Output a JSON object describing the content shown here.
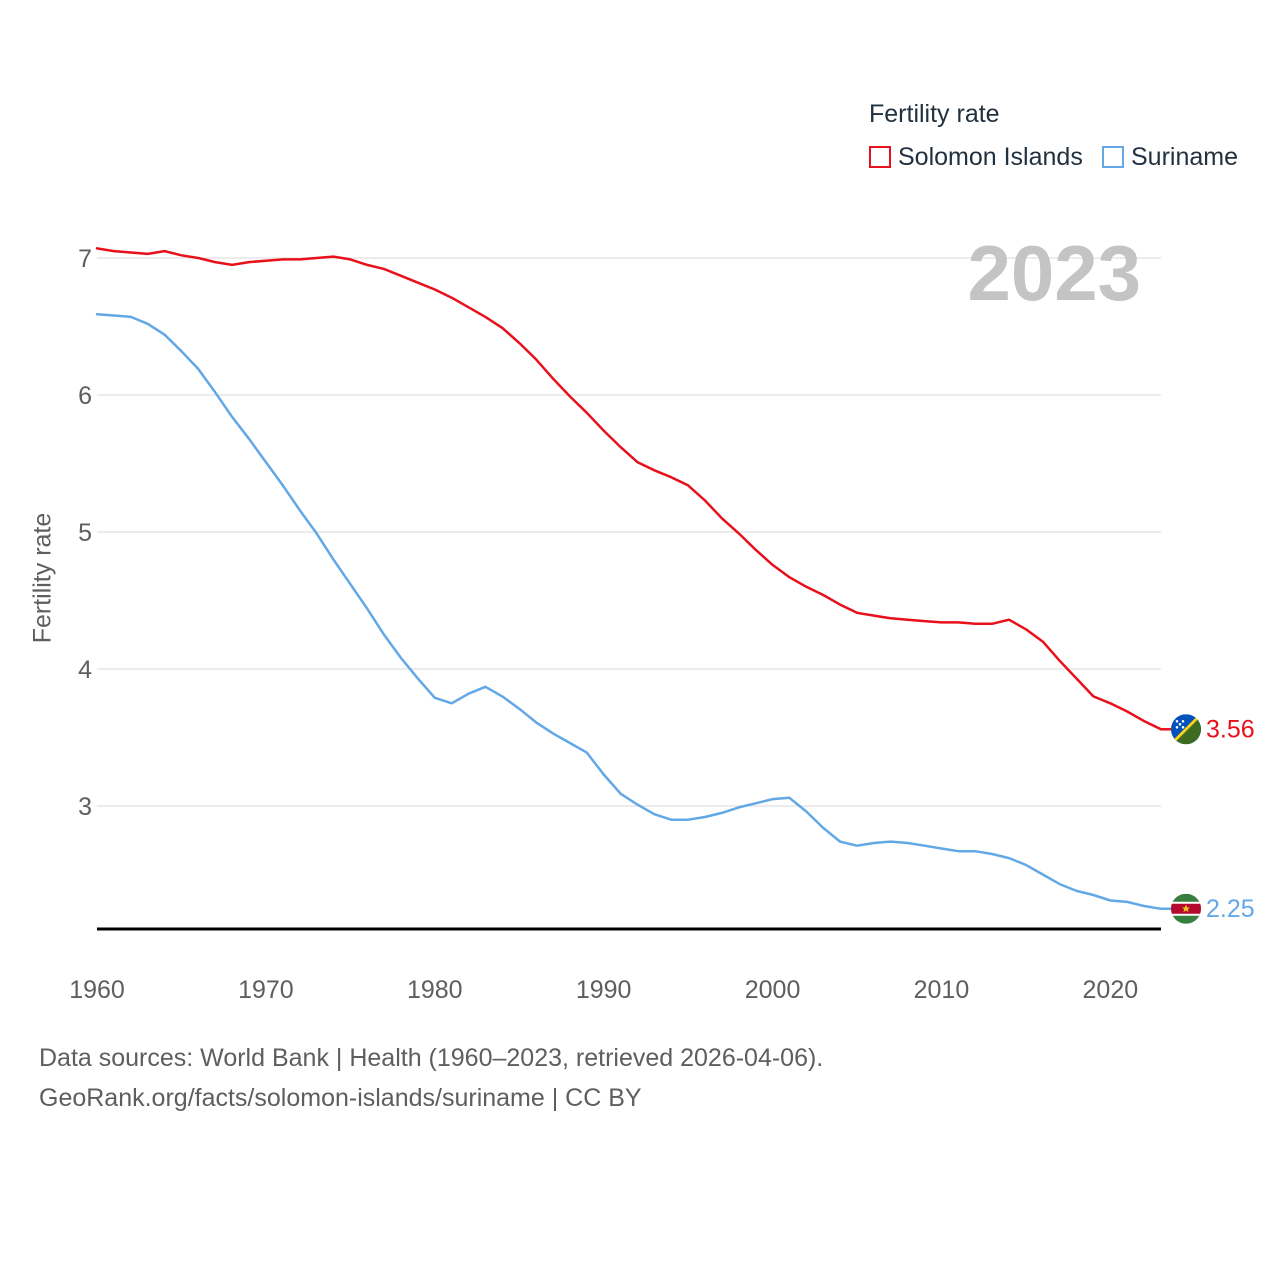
{
  "chart_data": {
    "type": "line",
    "title": "",
    "legend_title": "Fertility rate",
    "legend_position": "top-right",
    "big_year": "2023",
    "xlabel": "",
    "ylabel": "Fertility rate",
    "xlim": [
      1960,
      2023
    ],
    "ylim": [
      2.1,
      7.2
    ],
    "x_ticks": [
      "1960",
      "1970",
      "1980",
      "1990",
      "2000",
      "2010",
      "2020"
    ],
    "y_ticks": [
      "3",
      "4",
      "5",
      "6",
      "7"
    ],
    "grid": true,
    "x": [
      1960,
      1961,
      1962,
      1963,
      1964,
      1965,
      1966,
      1967,
      1968,
      1969,
      1970,
      1971,
      1972,
      1973,
      1974,
      1975,
      1976,
      1977,
      1978,
      1979,
      1980,
      1981,
      1982,
      1983,
      1984,
      1985,
      1986,
      1987,
      1988,
      1989,
      1990,
      1991,
      1992,
      1993,
      1994,
      1995,
      1996,
      1997,
      1998,
      1999,
      2000,
      2001,
      2002,
      2003,
      2004,
      2005,
      2006,
      2007,
      2008,
      2009,
      2010,
      2011,
      2012,
      2013,
      2014,
      2015,
      2016,
      2017,
      2018,
      2019,
      2020,
      2021,
      2022,
      2023
    ],
    "series": [
      {
        "name": "Solomon Islands",
        "color": "#e8101b",
        "end_label": "3.56",
        "flag": "solomon-islands-flag",
        "values": [
          7.07,
          7.05,
          7.04,
          7.03,
          7.05,
          7.02,
          7.0,
          6.97,
          6.95,
          6.97,
          6.98,
          6.99,
          6.99,
          7.0,
          7.01,
          6.99,
          6.95,
          6.92,
          6.87,
          6.82,
          6.77,
          6.71,
          6.64,
          6.57,
          6.49,
          6.38,
          6.26,
          6.12,
          5.99,
          5.87,
          5.74,
          5.62,
          5.51,
          5.45,
          5.4,
          5.34,
          5.23,
          5.1,
          4.99,
          4.87,
          4.76,
          4.67,
          4.6,
          4.54,
          4.47,
          4.41,
          4.39,
          4.37,
          4.36,
          4.35,
          4.34,
          4.34,
          4.33,
          4.33,
          4.36,
          4.29,
          4.2,
          4.06,
          3.93,
          3.8,
          3.75,
          3.69,
          3.62,
          3.56
        ]
      },
      {
        "name": "Suriname",
        "color": "#63a8e6",
        "end_label": "2.25",
        "flag": "suriname-flag",
        "values": [
          6.59,
          6.58,
          6.57,
          6.52,
          6.44,
          6.32,
          6.19,
          6.02,
          5.84,
          5.68,
          5.51,
          5.34,
          5.16,
          4.99,
          4.8,
          4.62,
          4.44,
          4.25,
          4.08,
          3.93,
          3.79,
          3.75,
          3.82,
          3.87,
          3.8,
          3.71,
          3.61,
          3.53,
          3.46,
          3.39,
          3.23,
          3.09,
          3.01,
          2.94,
          2.9,
          2.9,
          2.92,
          2.95,
          2.99,
          3.02,
          3.05,
          3.06,
          2.96,
          2.84,
          2.74,
          2.71,
          2.73,
          2.74,
          2.73,
          2.71,
          2.69,
          2.67,
          2.67,
          2.65,
          2.62,
          2.57,
          2.5,
          2.43,
          2.38,
          2.35,
          2.31,
          2.3,
          2.27,
          2.25
        ]
      }
    ]
  },
  "footer": {
    "line1": "Data sources: World Bank | Health (1960–2023, retrieved 2026-04-06).",
    "line2": "GeoRank.org/facts/solomon-islands/suriname | CC BY"
  }
}
